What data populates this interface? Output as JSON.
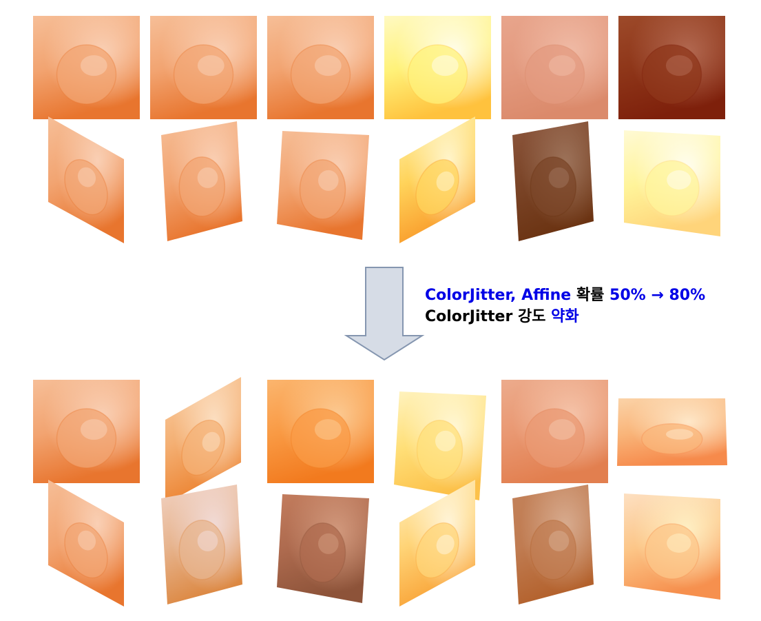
{
  "caption": {
    "line1": [
      {
        "text": "ColorJitter, Affine",
        "color": "#0000e6"
      },
      {
        "text": " 확률 ",
        "color": "#000000"
      },
      {
        "text": "50% → 80%",
        "color": "#0000e6"
      }
    ],
    "line2": [
      {
        "text": "ColorJitter 강도 ",
        "color": "#000000"
      },
      {
        "text": "약화",
        "color": "#0000e6"
      }
    ]
  },
  "arrow": {
    "fill": "#d6dce6",
    "stroke": "#8596b0",
    "direction": "down"
  },
  "panels": {
    "before": [
      {
        "transform": "none",
        "colors": [
          "#f6be97",
          "#f2a471",
          "#e8752e"
        ],
        "highlight": "#fbd7c0"
      },
      {
        "transform": "none",
        "colors": [
          "#f6be97",
          "#f2a471",
          "#e8752e"
        ],
        "highlight": "#fbd7c0"
      },
      {
        "transform": "none",
        "colors": [
          "#f6be97",
          "#f2a471",
          "#e8752e"
        ],
        "highlight": "#fbd7c0"
      },
      {
        "transform": "none",
        "colors": [
          "#fff9c2",
          "#fff27a",
          "#ffc23d"
        ],
        "highlight": "#ffffff"
      },
      {
        "transform": "none",
        "colors": [
          "#e8a58c",
          "#e39a7f",
          "#db8a6b"
        ],
        "highlight": "#f2c0ac"
      },
      {
        "transform": "none",
        "colors": [
          "#9d4a2a",
          "#8e3619",
          "#7e200b"
        ],
        "highlight": "#b8715a"
      },
      {
        "transform": "shear-down",
        "colors": [
          "#f6be97",
          "#f2a471",
          "#e8752e"
        ],
        "highlight": "#fbd7c0"
      },
      {
        "transform": "tilt-ccw",
        "colors": [
          "#f6be97",
          "#f2a471",
          "#e8752e"
        ],
        "highlight": "#fbd7c0"
      },
      {
        "transform": "tilt-cw",
        "colors": [
          "#f6be97",
          "#f2a471",
          "#e8752e"
        ],
        "highlight": "#fbd7c0"
      },
      {
        "transform": "shear-up",
        "colors": [
          "#fff2b0",
          "#ffd35a",
          "#f99a2a"
        ],
        "highlight": "#fffbe0"
      },
      {
        "transform": "tilt-ccw",
        "colors": [
          "#8c563d",
          "#7b4528",
          "#6b3312"
        ],
        "highlight": "#a37b63"
      },
      {
        "transform": "trapezoid",
        "colors": [
          "#fffad5",
          "#fff49a",
          "#ffd47a"
        ],
        "highlight": "#ffffff"
      }
    ],
    "after": [
      {
        "transform": "none",
        "colors": [
          "#f6be97",
          "#f2a471",
          "#e8752e"
        ],
        "highlight": "#fbd7c0"
      },
      {
        "transform": "shear-up",
        "colors": [
          "#f9cfa6",
          "#f4b074",
          "#ec822f"
        ],
        "highlight": "#fde7cf"
      },
      {
        "transform": "none",
        "colors": [
          "#fbb56e",
          "#f99a44",
          "#f27a1e"
        ],
        "highlight": "#fcd2a0"
      },
      {
        "transform": "tilt-cw",
        "colors": [
          "#fff3c0",
          "#ffdf78",
          "#fcc14a"
        ],
        "highlight": "#fffce8"
      },
      {
        "transform": "none",
        "colors": [
          "#ecab8c",
          "#e99872",
          "#e27f4f"
        ],
        "highlight": "#f7cbb3"
      },
      {
        "transform": "flat",
        "colors": [
          "#fbd3a8",
          "#f9b57a",
          "#f68a4b"
        ],
        "highlight": "#fff0d6"
      },
      {
        "transform": "shear-down",
        "colors": [
          "#f6be97",
          "#f2a471",
          "#e8752e"
        ],
        "highlight": "#fbd7c0"
      },
      {
        "transform": "tilt-ccw",
        "colors": [
          "#f1d2c3",
          "#e7b48e",
          "#dc8842"
        ],
        "highlight": "#f3e2e4"
      },
      {
        "transform": "tilt-cw",
        "colors": [
          "#c37d5e",
          "#ad6a4e",
          "#8d5339"
        ],
        "highlight": "#d8a185"
      },
      {
        "transform": "shear-up",
        "colors": [
          "#fff1c8",
          "#ffd477",
          "#f9a337"
        ],
        "highlight": "#fffaea"
      },
      {
        "transform": "tilt-ccw",
        "colors": [
          "#c3825a",
          "#c07c52",
          "#b3612c"
        ],
        "highlight": "#dcb49a"
      },
      {
        "transform": "trapezoid",
        "colors": [
          "#fde0c2",
          "#fcc688",
          "#f6904e"
        ],
        "highlight": "#fff7cf"
      }
    ]
  }
}
